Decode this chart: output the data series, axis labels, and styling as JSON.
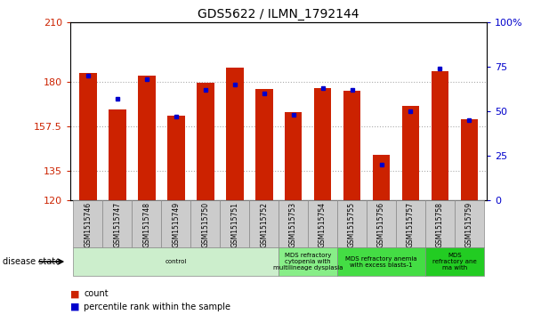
{
  "title": "GDS5622 / ILMN_1792144",
  "samples": [
    "GSM1515746",
    "GSM1515747",
    "GSM1515748",
    "GSM1515749",
    "GSM1515750",
    "GSM1515751",
    "GSM1515752",
    "GSM1515753",
    "GSM1515754",
    "GSM1515755",
    "GSM1515756",
    "GSM1515757",
    "GSM1515758",
    "GSM1515759"
  ],
  "counts": [
    184.5,
    166.0,
    183.0,
    163.0,
    179.5,
    187.0,
    176.5,
    164.5,
    177.0,
    175.5,
    143.0,
    168.0,
    185.5,
    161.0
  ],
  "percentile_ranks": [
    70,
    57,
    68,
    47,
    62,
    65,
    60,
    48,
    63,
    62,
    20,
    50,
    74,
    45
  ],
  "y_min": 120,
  "y_max": 210,
  "y_ticks": [
    120,
    135,
    157.5,
    180,
    210
  ],
  "y_tick_labels": [
    "120",
    "135",
    "157.5",
    "180",
    "210"
  ],
  "y2_ticks": [
    0,
    25,
    50,
    75,
    100
  ],
  "y2_tick_labels": [
    "0",
    "25",
    "50",
    "75",
    "100%"
  ],
  "bar_color": "#cc2200",
  "percentile_color": "#0000cc",
  "grid_color": "#aaaaaa",
  "disease_groups": [
    {
      "label": "control",
      "start": 0,
      "end": 7,
      "color": "#cceecc"
    },
    {
      "label": "MDS refractory\ncytopenia with\nmultilineage dysplasia",
      "start": 7,
      "end": 9,
      "color": "#88ee88"
    },
    {
      "label": "MDS refractory anemia\nwith excess blasts-1",
      "start": 9,
      "end": 12,
      "color": "#44dd44"
    },
    {
      "label": "MDS\nrefractory ane\nma with",
      "start": 12,
      "end": 14,
      "color": "#22cc22"
    }
  ],
  "sample_box_color": "#cccccc",
  "bar_width": 0.6,
  "legend_items": [
    {
      "label": "count",
      "color": "#cc2200"
    },
    {
      "label": "percentile rank within the sample",
      "color": "#0000cc"
    }
  ]
}
